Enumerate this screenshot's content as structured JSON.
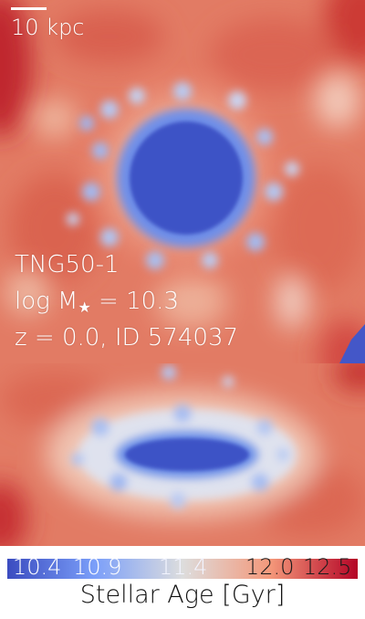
{
  "top_panel": {
    "scale_label": "10 kpc",
    "sim_name": "TNG50-1",
    "mass_prefix": "log M",
    "mass_sub": "★",
    "mass_value": " = 10.3",
    "redshift_id": "z = 0.0, ID 574037"
  },
  "colorbar": {
    "ticks": [
      "10.4",
      "10.9",
      "11.4",
      "12.0",
      "12.5"
    ],
    "title": "Stellar Age [Gyr]",
    "colors": [
      "#3b4cc0",
      "#7b9ff9",
      "#dddddd",
      "#f4987a",
      "#b40426"
    ]
  }
}
